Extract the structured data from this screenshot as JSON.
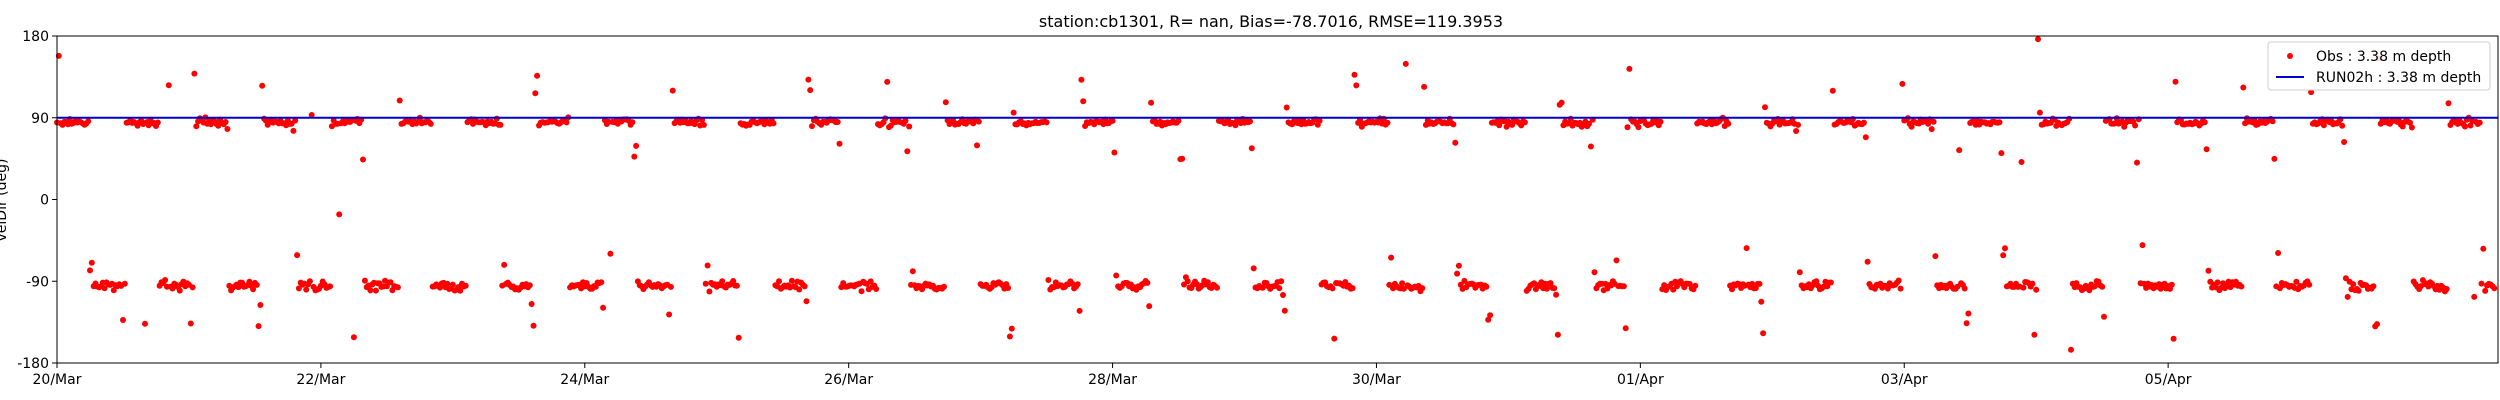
{
  "chart_data": {
    "type": "scatter",
    "title": "station:cb1301, R=   nan, Bias=-78.7016, RMSE=119.3953",
    "xlabel": "",
    "ylabel": "velDir (deg)",
    "xlim_days": [
      0,
      18.5
    ],
    "ylim": [
      -180,
      180
    ],
    "yticks": [
      -180,
      -90,
      0,
      90,
      180
    ],
    "xtick_labels": [
      {
        "day": 0,
        "label": "20/Mar"
      },
      {
        "day": 2,
        "label": "22/Mar"
      },
      {
        "day": 4,
        "label": "24/Mar"
      },
      {
        "day": 6,
        "label": "26/Mar"
      },
      {
        "day": 8,
        "label": "28/Mar"
      },
      {
        "day": 10,
        "label": "30/Mar"
      },
      {
        "day": 12,
        "label": "01/Apr"
      },
      {
        "day": 14,
        "label": "03/Apr"
      },
      {
        "day": 16,
        "label": "05/Apr"
      }
    ],
    "grid": false,
    "legend_position": "top-right",
    "series": [
      {
        "name": "Obs : 3.38 m depth",
        "kind": "scatter",
        "color": "#ff0000",
        "pattern": "tidal reversing direction: near +85 deg on flood, near -95 deg on ebb, alternating every ~6.2 h",
        "high_cluster_deg": 85,
        "low_cluster_deg": -95
      },
      {
        "name": "RUN02h : 3.38 m depth",
        "kind": "line",
        "color": "#0000cc",
        "constant_value": 90
      }
    ]
  }
}
